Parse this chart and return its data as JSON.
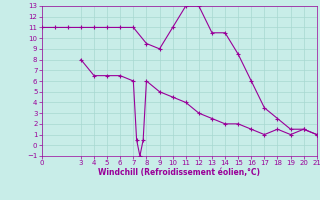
{
  "xlabel": "Windchill (Refroidissement éolien,°C)",
  "bg_color": "#c8ede8",
  "line_color": "#990099",
  "grid_color": "#a8d8d0",
  "xlim": [
    0,
    21
  ],
  "ylim": [
    -1,
    13
  ],
  "xticks_major": [
    0,
    3,
    4,
    5,
    6,
    7,
    8,
    9,
    10,
    11,
    12,
    13,
    14,
    15,
    16,
    17,
    18,
    19,
    20,
    21
  ],
  "yticks_major": [
    -1,
    0,
    1,
    2,
    3,
    4,
    5,
    6,
    7,
    8,
    9,
    10,
    11,
    12,
    13
  ],
  "line1_x": [
    0,
    1,
    2,
    3,
    4,
    5,
    6,
    7,
    8,
    9,
    10,
    11,
    12,
    13,
    14,
    15,
    16,
    17,
    18,
    19,
    20,
    21
  ],
  "line1_y": [
    11,
    11,
    11,
    11,
    11,
    11,
    11,
    11,
    9.5,
    9.0,
    11,
    13,
    13,
    10.5,
    10.5,
    8.5,
    6.0,
    3.5,
    2.5,
    1.5,
    1.5,
    1.0
  ],
  "line2_x": [
    3,
    4,
    5,
    6,
    7,
    7.25,
    7.5,
    7.75,
    8,
    9,
    10,
    11,
    12,
    13,
    14,
    15,
    16,
    17,
    18,
    19,
    20,
    21
  ],
  "line2_y": [
    8,
    6.5,
    6.5,
    6.5,
    6.0,
    0.5,
    -1.0,
    0.5,
    6.0,
    5.0,
    4.5,
    4.0,
    3.0,
    2.5,
    2.0,
    2.0,
    1.5,
    1.0,
    1.5,
    1.0,
    1.5,
    1.0
  ],
  "marker_size": 3,
  "linewidth": 0.8,
  "tick_labelsize": 5,
  "xlabel_fontsize": 5.5
}
